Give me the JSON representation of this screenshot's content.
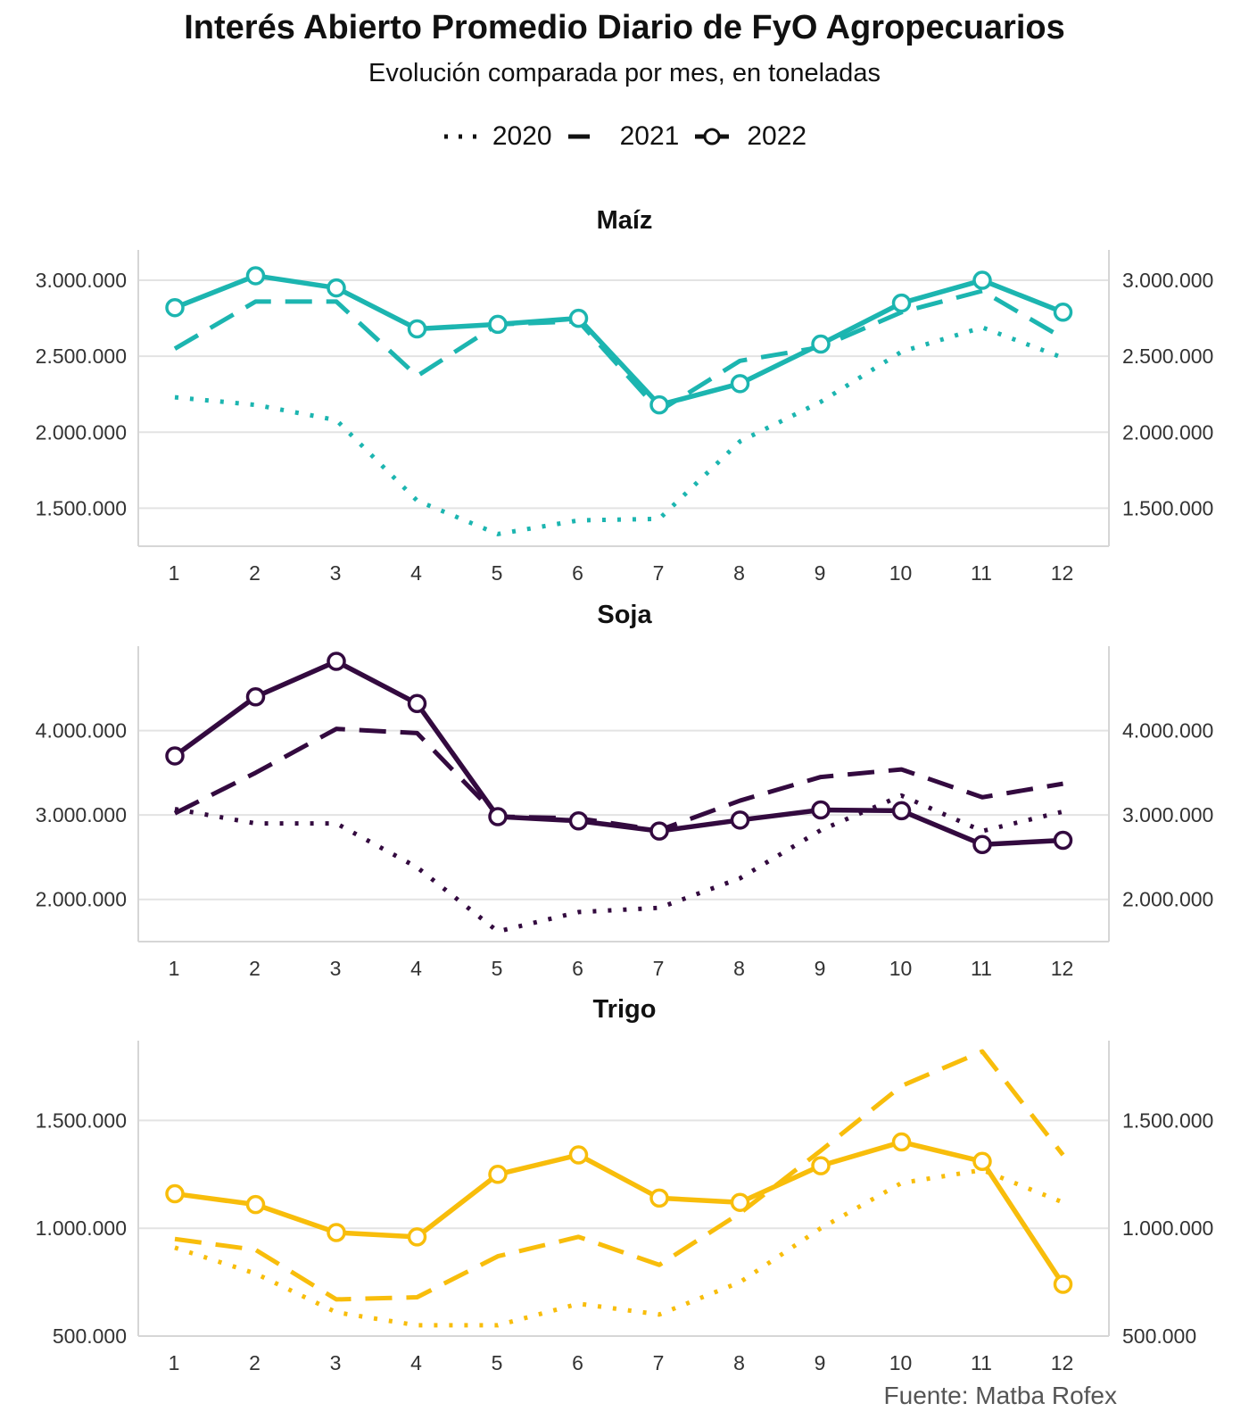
{
  "title": "Interés Abierto Promedio Diario de FyO Agropecuarios",
  "subtitle": "Evolución comparada por mes, en toneladas",
  "legend": [
    {
      "label": "2020",
      "style": "dotted"
    },
    {
      "label": "2021",
      "style": "dashed"
    },
    {
      "label": "2022",
      "style": "solid-circle"
    }
  ],
  "source": "Fuente: Matba Rofex",
  "chart_data": [
    {
      "type": "line",
      "title": "Maíz",
      "color": "#1cb5b0",
      "x": [
        1,
        2,
        3,
        4,
        5,
        6,
        7,
        8,
        9,
        10,
        11,
        12
      ],
      "ylim": [
        1250000,
        3200000
      ],
      "yticks": [
        1500000,
        2000000,
        2500000,
        3000000
      ],
      "ytick_labels": [
        "1.500.000",
        "2.000.000",
        "2.500.000",
        "3.000.000"
      ],
      "series": [
        {
          "name": "2020",
          "values": [
            2230000,
            2180000,
            2080000,
            1550000,
            1330000,
            1420000,
            1430000,
            1940000,
            2200000,
            2530000,
            2690000,
            2490000
          ]
        },
        {
          "name": "2021",
          "values": [
            2550000,
            2860000,
            2860000,
            2370000,
            2710000,
            2730000,
            2140000,
            2470000,
            2560000,
            2790000,
            2930000,
            2620000
          ]
        },
        {
          "name": "2022",
          "values": [
            2820000,
            3030000,
            2950000,
            2680000,
            2710000,
            2750000,
            2180000,
            2320000,
            2580000,
            2850000,
            3000000,
            2790000
          ]
        }
      ]
    },
    {
      "type": "line",
      "title": "Soja",
      "color": "#330a3f",
      "x": [
        1,
        2,
        3,
        4,
        5,
        6,
        7,
        8,
        9,
        10,
        11,
        12
      ],
      "ylim": [
        1500000,
        5000000
      ],
      "yticks": [
        2000000,
        3000000,
        4000000
      ],
      "ytick_labels": [
        "2.000.000",
        "3.000.000",
        "4.000.000"
      ],
      "series": [
        {
          "name": "2020",
          "values": [
            3070000,
            2900000,
            2900000,
            2380000,
            1620000,
            1850000,
            1900000,
            2250000,
            2820000,
            3230000,
            2810000,
            3040000
          ]
        },
        {
          "name": "2021",
          "values": [
            3020000,
            3500000,
            4020000,
            3970000,
            2980000,
            2960000,
            2820000,
            3170000,
            3450000,
            3540000,
            3210000,
            3370000
          ]
        },
        {
          "name": "2022",
          "values": [
            3700000,
            4400000,
            4820000,
            4320000,
            2980000,
            2930000,
            2810000,
            2940000,
            3060000,
            3050000,
            2650000,
            2700000
          ]
        }
      ]
    },
    {
      "type": "line",
      "title": "Trigo",
      "color": "#f8bd0b",
      "x": [
        1,
        2,
        3,
        4,
        5,
        6,
        7,
        8,
        9,
        10,
        11,
        12
      ],
      "ylim": [
        500000,
        1870000
      ],
      "yticks": [
        500000,
        1000000,
        1500000
      ],
      "ytick_labels": [
        "500.000",
        "1.000.000",
        "1.500.000"
      ],
      "series": [
        {
          "name": "2020",
          "values": [
            910000,
            790000,
            610000,
            550000,
            550000,
            650000,
            600000,
            750000,
            1000000,
            1210000,
            1270000,
            1120000
          ]
        },
        {
          "name": "2021",
          "values": [
            950000,
            900000,
            670000,
            680000,
            870000,
            960000,
            830000,
            1070000,
            1360000,
            1660000,
            1820000,
            1340000
          ]
        },
        {
          "name": "2022",
          "values": [
            1160000,
            1110000,
            980000,
            960000,
            1250000,
            1340000,
            1140000,
            1120000,
            1290000,
            1400000,
            1310000,
            740000
          ]
        }
      ]
    }
  ]
}
